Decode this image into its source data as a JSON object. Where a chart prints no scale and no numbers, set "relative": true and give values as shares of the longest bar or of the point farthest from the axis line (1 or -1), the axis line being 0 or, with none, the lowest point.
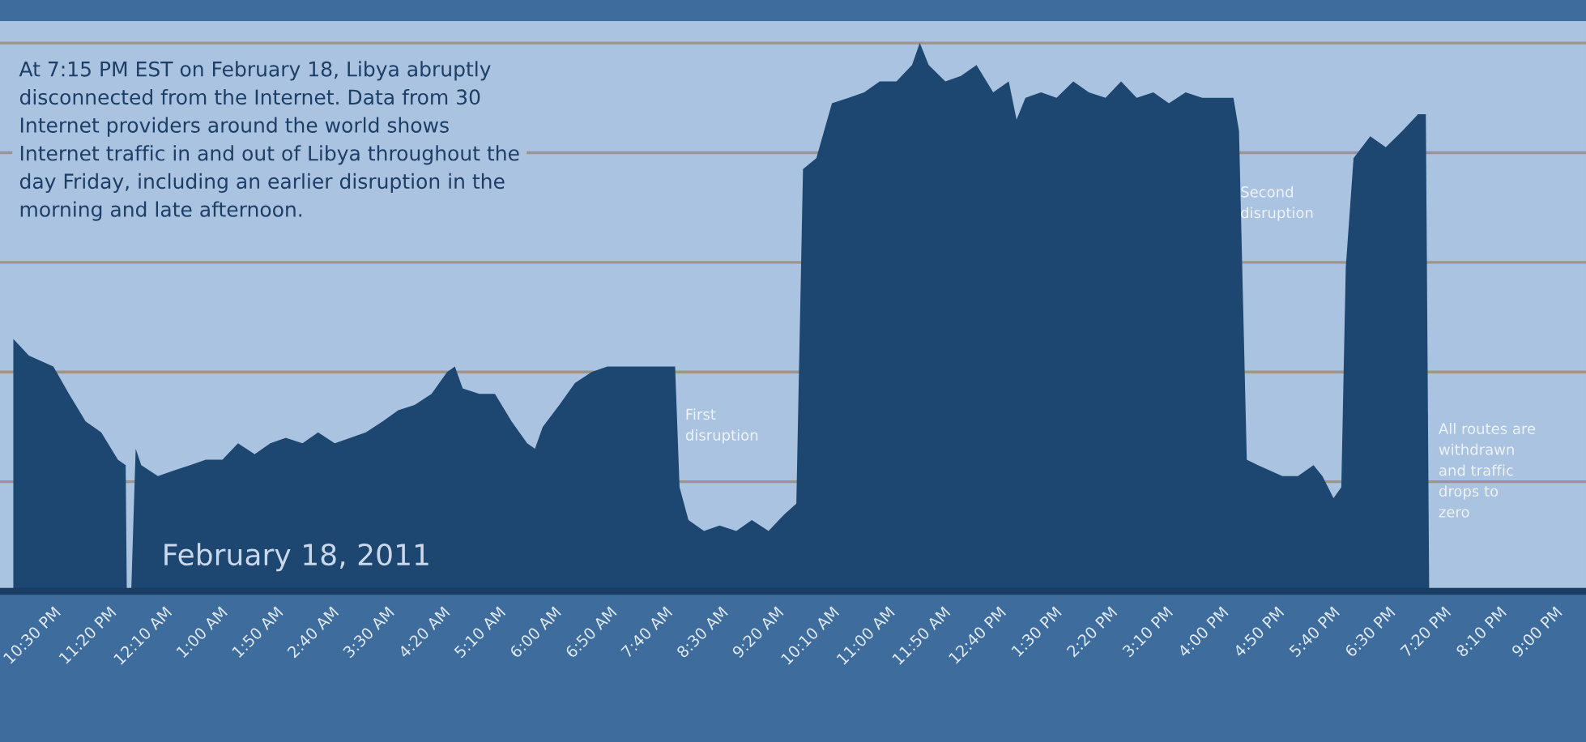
{
  "chart_data": {
    "type": "area",
    "relative": true,
    "color": "#1d4670",
    "grid": "y",
    "x": [
      "2011-02-17T21:54",
      "2011-02-17T22:08",
      "2011-02-17T22:30",
      "2011-02-17T22:44",
      "2011-02-17T22:59",
      "2011-02-17T23:13",
      "2011-02-17T23:28",
      "2011-02-17T23:35",
      "2011-02-17T23:36",
      "2011-02-17T23:40",
      "2011-02-17T23:44",
      "2011-02-17T23:49",
      "2011-02-18T00:04",
      "2011-02-18T00:18",
      "2011-02-18T00:33",
      "2011-02-18T00:47",
      "2011-02-18T01:02",
      "2011-02-18T01:16",
      "2011-02-18T01:31",
      "2011-02-18T01:45",
      "2011-02-18T01:59",
      "2011-02-18T02:14",
      "2011-02-18T02:28",
      "2011-02-18T02:43",
      "2011-02-18T02:57",
      "2011-02-18T03:11",
      "2011-02-18T03:26",
      "2011-02-18T03:40",
      "2011-02-18T03:55",
      "2011-02-18T04:10",
      "2011-02-18T04:24",
      "2011-02-18T04:31",
      "2011-02-18T04:38",
      "2011-02-18T04:53",
      "2011-02-18T05:07",
      "2011-02-18T05:22",
      "2011-02-18T05:36",
      "2011-02-18T05:43",
      "2011-02-18T05:50",
      "2011-02-18T06:05",
      "2011-02-18T06:19",
      "2011-02-18T06:34",
      "2011-02-18T06:48",
      "2011-02-18T07:02",
      "2011-02-18T07:17",
      "2011-02-18T07:38",
      "2011-02-18T07:49",
      "2011-02-18T07:53",
      "2011-02-18T08:01",
      "2011-02-18T08:15",
      "2011-02-18T08:29",
      "2011-02-18T08:44",
      "2011-02-18T08:58",
      "2011-02-18T09:13",
      "2011-02-18T09:27",
      "2011-02-18T09:38",
      "2011-02-18T09:44",
      "2011-02-18T09:56",
      "2011-02-18T10:10",
      "2011-02-18T10:25",
      "2011-02-18T10:39",
      "2011-02-18T10:53",
      "2011-02-18T11:08",
      "2011-02-18T11:22",
      "2011-02-18T11:29",
      "2011-02-18T11:37",
      "2011-02-18T11:52",
      "2011-02-18T12:06",
      "2011-02-18T12:20",
      "2011-02-18T12:35",
      "2011-02-18T12:49",
      "2011-02-18T12:56",
      "2011-02-18T13:04",
      "2011-02-18T13:18",
      "2011-02-18T13:32",
      "2011-02-18T13:47",
      "2011-02-18T14:01",
      "2011-02-18T14:16",
      "2011-02-18T14:30",
      "2011-02-18T14:44",
      "2011-02-18T14:59",
      "2011-02-18T15:13",
      "2011-02-18T15:28",
      "2011-02-18T15:43",
      "2011-02-18T15:57",
      "2011-02-18T16:11",
      "2011-02-18T16:16",
      "2011-02-18T16:23",
      "2011-02-18T16:33",
      "2011-02-18T16:55",
      "2011-02-18T17:09",
      "2011-02-18T17:23",
      "2011-02-18T17:31",
      "2011-02-18T17:41",
      "2011-02-18T17:48",
      "2011-02-18T17:52",
      "2011-02-18T17:59",
      "2011-02-18T18:14",
      "2011-02-18T18:28",
      "2011-02-18T18:43",
      "2011-02-18T18:57",
      "2011-02-18T19:04",
      "2011-02-18T19:07"
    ],
    "values": [
      0.46,
      0.43,
      0.41,
      0.36,
      0.31,
      0.29,
      0.24,
      0.23,
      0,
      0,
      0.26,
      0.23,
      0.21,
      0.22,
      0.23,
      0.24,
      0.24,
      0.27,
      0.25,
      0.27,
      0.28,
      0.27,
      0.29,
      0.27,
      0.28,
      0.29,
      0.31,
      0.33,
      0.34,
      0.36,
      0.4,
      0.41,
      0.37,
      0.36,
      0.36,
      0.31,
      0.27,
      0.26,
      0.3,
      0.34,
      0.38,
      0.4,
      0.41,
      0.41,
      0.41,
      0.41,
      0.41,
      0.19,
      0.13,
      0.11,
      0.12,
      0.11,
      0.13,
      0.11,
      0.14,
      0.16,
      0.77,
      0.79,
      0.89,
      0.9,
      0.91,
      0.93,
      0.93,
      0.96,
      1,
      0.96,
      0.93,
      0.94,
      0.96,
      0.91,
      0.93,
      0.86,
      0.9,
      0.91,
      0.9,
      0.93,
      0.91,
      0.9,
      0.93,
      0.9,
      0.91,
      0.89,
      0.91,
      0.9,
      0.9,
      0.9,
      0.84,
      0.24,
      0.23,
      0.21,
      0.21,
      0.23,
      0.21,
      0.17,
      0.19,
      0.59,
      0.79,
      0.83,
      0.81,
      0.84,
      0.87,
      0.87,
      0
    ],
    "xlim": [
      "2011-02-17T21:42",
      "2011-02-18T21:28"
    ],
    "xticks": [
      {
        "value": "2011-02-17T22:30",
        "label": "10:30 PM"
      },
      {
        "value": "2011-02-17T23:20",
        "label": "11:20 PM"
      },
      {
        "value": "2011-02-18T00:10",
        "label": "12:10 AM"
      },
      {
        "value": "2011-02-18T01:00",
        "label": "1:00 AM"
      },
      {
        "value": "2011-02-18T01:50",
        "label": "1:50 AM"
      },
      {
        "value": "2011-02-18T02:40",
        "label": "2:40 AM"
      },
      {
        "value": "2011-02-18T03:30",
        "label": "3:30 AM"
      },
      {
        "value": "2011-02-18T04:20",
        "label": "4:20 AM"
      },
      {
        "value": "2011-02-18T05:10",
        "label": "5:10 AM"
      },
      {
        "value": "2011-02-18T06:00",
        "label": "6:00 AM"
      },
      {
        "value": "2011-02-18T06:50",
        "label": "6:50 AM"
      },
      {
        "value": "2011-02-18T07:40",
        "label": "7:40 AM"
      },
      {
        "value": "2011-02-18T08:30",
        "label": "8:30 AM"
      },
      {
        "value": "2011-02-18T09:20",
        "label": "9:20 AM"
      },
      {
        "value": "2011-02-18T10:10",
        "label": "10:10 AM"
      },
      {
        "value": "2011-02-18T11:00",
        "label": "11:00 AM"
      },
      {
        "value": "2011-02-18T11:50",
        "label": "11:50 AM"
      },
      {
        "value": "2011-02-18T12:40",
        "label": "12:40 PM"
      },
      {
        "value": "2011-02-18T13:30",
        "label": "1:30 PM"
      },
      {
        "value": "2011-02-18T14:20",
        "label": "2:20 PM"
      },
      {
        "value": "2011-02-18T15:10",
        "label": "3:10 PM"
      },
      {
        "value": "2011-02-18T16:00",
        "label": "4:00 PM"
      },
      {
        "value": "2011-02-18T16:50",
        "label": "4:50 PM"
      },
      {
        "value": "2011-02-18T17:40",
        "label": "5:40 PM"
      },
      {
        "value": "2011-02-18T18:30",
        "label": "6:30 PM"
      },
      {
        "value": "2011-02-18T19:20",
        "label": "7:20 PM"
      },
      {
        "value": "2011-02-18T20:10",
        "label": "8:10 PM"
      },
      {
        "value": "2011-02-18T21:00",
        "label": "9:00 PM"
      }
    ],
    "annotations": [
      "At 7:15 PM EST on February 18, Libya abruptly\ndisconnected from the Internet. Data from 30\nInternet providers around the world shows\nInternet traffic in and out of Libya throughout the\nday Friday, including an earlier disruption in the\nmorning and late afternoon.",
      "February 18, 2011",
      "First\ndisruption",
      "Second\ndisruption",
      "All routes are\nwithdrawn\nand traffic\ndrops to\nzero"
    ]
  }
}
